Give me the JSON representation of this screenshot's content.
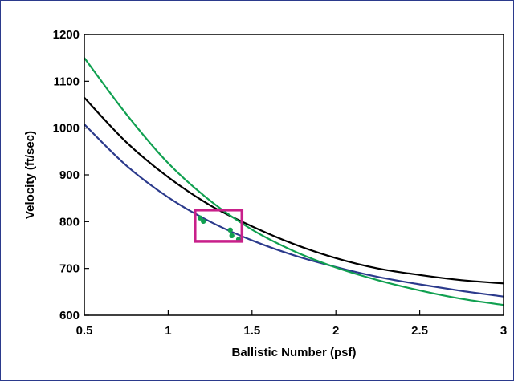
{
  "chart_data": {
    "type": "line",
    "xlabel": "Ballistic Number (psf)",
    "ylabel": "Velocity (ft/sec)",
    "xlim": [
      0.5,
      3
    ],
    "ylim": [
      600,
      1200
    ],
    "xticks": [
      0.5,
      1,
      1.5,
      2,
      2.5,
      3
    ],
    "xtick_labels": [
      "0.5",
      "1",
      "1.5",
      "2",
      "2.5",
      "3"
    ],
    "yticks": [
      600,
      700,
      800,
      900,
      1000,
      1100,
      1200
    ],
    "ytick_labels": [
      "600",
      "700",
      "800",
      "900",
      "1000",
      "1100",
      "1200"
    ],
    "grid": false,
    "series": [
      {
        "color": "#000000",
        "x": [
          0.5,
          0.75,
          1.0,
          1.25,
          1.5,
          1.75,
          2.0,
          2.25,
          2.5,
          2.75,
          3.0
        ],
        "values": [
          1065,
          970,
          895,
          835,
          790,
          752,
          722,
          700,
          686,
          675,
          668
        ]
      },
      {
        "color": "#2b3a8c",
        "x": [
          0.5,
          0.75,
          1.0,
          1.25,
          1.5,
          1.75,
          2.0,
          2.25,
          2.5,
          2.75,
          3.0
        ],
        "values": [
          1008,
          920,
          852,
          800,
          760,
          728,
          703,
          682,
          666,
          652,
          640
        ]
      },
      {
        "color": "#10a050",
        "x": [
          0.5,
          0.75,
          1.0,
          1.25,
          1.5,
          1.75,
          2.0,
          2.25,
          2.5,
          2.75,
          3.0
        ],
        "values": [
          1150,
          1030,
          925,
          845,
          783,
          737,
          702,
          675,
          653,
          635,
          622
        ]
      }
    ],
    "points": {
      "color": "#10a050",
      "x": [
        1.19,
        1.21,
        1.37,
        1.38,
        1.42
      ],
      "y": [
        808,
        801,
        782,
        770,
        762
      ]
    },
    "highlight_box": {
      "color": "#c8208a",
      "x": [
        1.16,
        1.44
      ],
      "y": [
        758,
        825
      ]
    }
  }
}
